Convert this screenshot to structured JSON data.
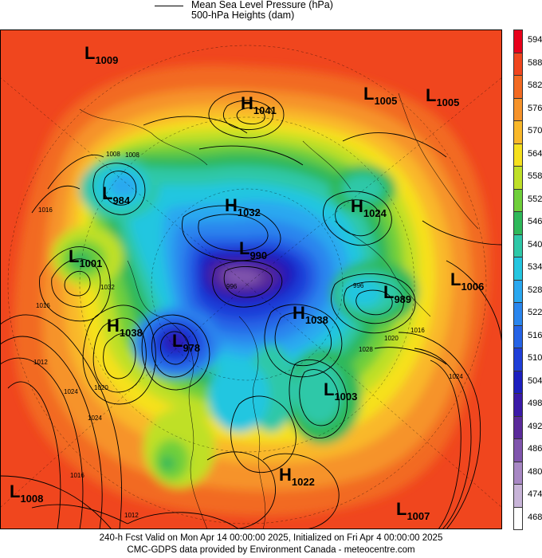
{
  "legend": {
    "line1": "Mean Sea Level Pressure (hPa)",
    "line2": "500-hPa Heights (dam)"
  },
  "footer": {
    "line1": "240-h Fcst Valid on Mon Apr 14 00:00:00 2025, Initialized on Fri Apr  4 00:00:00 2025",
    "line2": "CMC-GDPS data provided by Environment Canada - meteocentre.com"
  },
  "colorbar": [
    {
      "label": "594",
      "color": "#e8001a"
    },
    {
      "label": "588",
      "color": "#f0461e"
    },
    {
      "label": "582",
      "color": "#f26a22"
    },
    {
      "label": "576",
      "color": "#f6932a"
    },
    {
      "label": "570",
      "color": "#f9b82a"
    },
    {
      "label": "564",
      "color": "#f6e11e"
    },
    {
      "label": "558",
      "color": "#bfe028"
    },
    {
      "label": "552",
      "color": "#6fcf3a"
    },
    {
      "label": "546",
      "color": "#2eb85a"
    },
    {
      "label": "540",
      "color": "#2ec8a8"
    },
    {
      "label": "534",
      "color": "#24c6e0"
    },
    {
      "label": "528",
      "color": "#2aa8f0"
    },
    {
      "label": "522",
      "color": "#2a86ee"
    },
    {
      "label": "516",
      "color": "#2563e6"
    },
    {
      "label": "510",
      "color": "#1f3ed8"
    },
    {
      "label": "504",
      "color": "#1c1fbf"
    },
    {
      "label": "498",
      "color": "#3a1aa8"
    },
    {
      "label": "492",
      "color": "#5a2a9a"
    },
    {
      "label": "486",
      "color": "#8055ad"
    },
    {
      "label": "480",
      "color": "#a888c4"
    },
    {
      "label": "474",
      "color": "#c8b4d8"
    },
    {
      "label": "468",
      "color": "#ffffff"
    }
  ],
  "centers": [
    {
      "type": "L",
      "value": "1009"
    },
    {
      "type": "H",
      "value": "1041"
    },
    {
      "type": "L",
      "value": "1005"
    },
    {
      "type": "L",
      "value": "1005"
    },
    {
      "type": "L",
      "value": "984"
    },
    {
      "type": "H",
      "value": "1032"
    },
    {
      "type": "H",
      "value": "1024"
    },
    {
      "type": "L",
      "value": "1001"
    },
    {
      "type": "L",
      "value": "990"
    },
    {
      "type": "L",
      "value": "1006"
    },
    {
      "type": "L",
      "value": "989"
    },
    {
      "type": "H",
      "value": "1038"
    },
    {
      "type": "H",
      "value": "1038"
    },
    {
      "type": "L",
      "value": "978"
    },
    {
      "type": "L",
      "value": "1003"
    },
    {
      "type": "H",
      "value": "1022"
    },
    {
      "type": "L",
      "value": "1008"
    },
    {
      "type": "L",
      "value": "1007"
    }
  ],
  "isobar_labels": [
    "1008",
    "1016",
    "1032",
    "1016",
    "1024",
    "1016",
    "1020",
    "1028",
    "1024",
    "1016",
    "1012",
    "996",
    "1008",
    "1012",
    "1020",
    "1024",
    "996"
  ]
}
